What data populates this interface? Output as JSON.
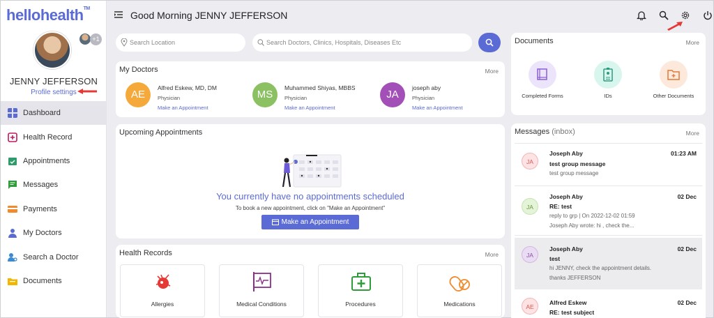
{
  "app": {
    "logo": "hellohealth",
    "logo_mark": "TM"
  },
  "user": {
    "name": "JENNY JEFFERSON",
    "profile_link": "Profile settings",
    "badge": "+1"
  },
  "sidebar": {
    "items": [
      {
        "label": "Dashboard",
        "icon": "dashboard-icon",
        "color": "#5b6bd6"
      },
      {
        "label": "Health Record",
        "icon": "health-record-icon",
        "color": "#c2185b"
      },
      {
        "label": "Appointments",
        "icon": "calendar-check-icon",
        "color": "#2e9c6a"
      },
      {
        "label": "Messages",
        "icon": "chat-icon",
        "color": "#2e9c3a"
      },
      {
        "label": "Payments",
        "icon": "card-icon",
        "color": "#f08a2c"
      },
      {
        "label": "My Doctors",
        "icon": "doctor-icon",
        "color": "#5b6bd6"
      },
      {
        "label": "Search a Doctor",
        "icon": "search-doctor-icon",
        "color": "#3a8ad6"
      },
      {
        "label": "Documents",
        "icon": "folder-icon",
        "color": "#f2b600"
      }
    ]
  },
  "header": {
    "greeting": "Good Morning JENNY JEFFERSON"
  },
  "search": {
    "location_placeholder": "Search Location",
    "main_placeholder": "Search Doctors, Clinics, Hospitals, Diseases Etc"
  },
  "my_doctors": {
    "title": "My Doctors",
    "more": "More",
    "doctors": [
      {
        "initials": "AE",
        "name": "Alfred Eskew, MD, DM",
        "role": "Physician",
        "link": "Make an Appointment",
        "color": "#f6a93b"
      },
      {
        "initials": "MS",
        "name": "Muhammed Shiyas, MBBS",
        "role": "Physician",
        "link": "Make an Appointment",
        "color": "#8cc163"
      },
      {
        "initials": "JA",
        "name": "joseph aby",
        "role": "Physician",
        "link": "Make an Appointment",
        "color": "#a34fb8"
      }
    ]
  },
  "appointments": {
    "title": "Upcoming Appointments",
    "empty_message": "You currently have no appointments scheduled",
    "empty_sub": "To book a new appointment, click on \"Make an Appointment\"",
    "button": "Make an Appointment"
  },
  "health_records": {
    "title": "Health Records",
    "more": "More",
    "items": [
      "Allergies",
      "Medical Conditions",
      "Procedures",
      "Medications"
    ]
  },
  "documents": {
    "title": "Documents",
    "more": "More",
    "items": [
      {
        "label": "Completed Forms",
        "color": "#ece4fb"
      },
      {
        "label": "IDs",
        "color": "#d9f6ee"
      },
      {
        "label": "Other Documents",
        "color": "#fde9dc"
      }
    ]
  },
  "messages": {
    "title": "Messages",
    "title_suffix": "(inbox)",
    "more": "More",
    "items": [
      {
        "initials": "JA",
        "from": "Joseph Aby",
        "time": "01:23 AM",
        "subject": "test group message",
        "lines": [
          "test group message"
        ],
        "bg": "#fde3e3",
        "fg": "#d55"
      },
      {
        "initials": "JA",
        "from": "Joseph Aby",
        "time": "02 Dec",
        "subject": "RE: test",
        "lines": [
          "reply to grp | On 2022-12-02 01:59",
          "Joseph Aby wrote: hi , check the..."
        ],
        "bg": "#e5f3d9",
        "fg": "#6a9a3e"
      },
      {
        "initials": "JA",
        "from": "Joseph Aby",
        "time": "02 Dec",
        "subject": "test",
        "lines": [
          "hi JENNY, check the appointment details.",
          "thanks JEFFERSON"
        ],
        "bg": "#eadcf2",
        "fg": "#8a4fa8"
      },
      {
        "initials": "AE",
        "from": "Alfred Eskew",
        "time": "02 Dec",
        "subject": "RE: test subject",
        "lines": [],
        "bg": "#fde3e3",
        "fg": "#d55"
      }
    ]
  }
}
